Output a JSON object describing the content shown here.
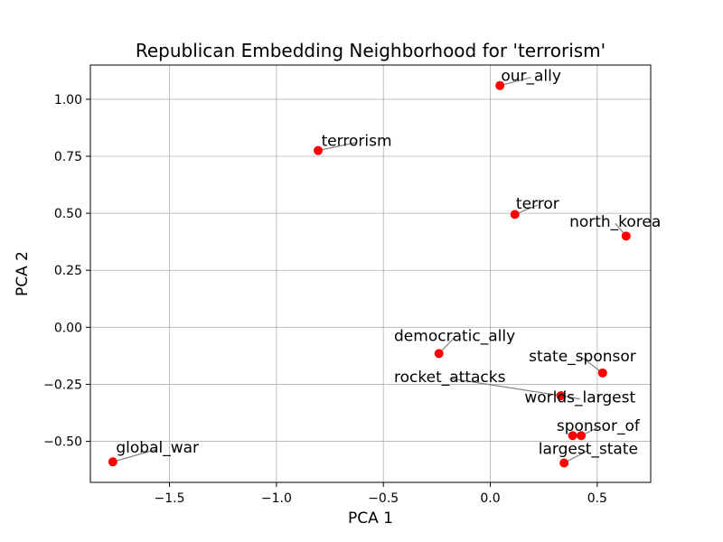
{
  "chart_data": {
    "type": "scatter",
    "title": "Republican Embedding Neighborhood for 'terrorism'",
    "xlabel": "PCA 1",
    "ylabel": "PCA 2",
    "xlim": [
      -1.87,
      0.75
    ],
    "ylim": [
      -0.68,
      1.15
    ],
    "xticks": [
      -1.5,
      -1.0,
      -0.5,
      0.0,
      0.5
    ],
    "xtick_labels": [
      "−1.5",
      "−1.0",
      "−0.5",
      "0.0",
      "0.5"
    ],
    "yticks": [
      -0.5,
      -0.25,
      0.0,
      0.25,
      0.5,
      0.75,
      1.0
    ],
    "ytick_labels": [
      "−0.50",
      "−0.25",
      "0.00",
      "0.25",
      "0.50",
      "0.75",
      "1.00"
    ],
    "grid": true,
    "marker_color": "#ff0000",
    "points": [
      {
        "label": "our_ally",
        "x": 0.045,
        "y": 1.06,
        "label_x": 0.05,
        "label_y": 1.08,
        "label_anchor": "start"
      },
      {
        "label": "terrorism",
        "x": -0.805,
        "y": 0.775,
        "label_x": -0.79,
        "label_y": 0.795,
        "label_anchor": "start"
      },
      {
        "label": "terror",
        "x": 0.115,
        "y": 0.495,
        "label_x": 0.12,
        "label_y": 0.52,
        "label_anchor": "start"
      },
      {
        "label": "north_korea",
        "x": 0.635,
        "y": 0.4,
        "label_x": 0.37,
        "label_y": 0.44,
        "label_anchor": "start"
      },
      {
        "label": "democratic_ally",
        "x": -0.24,
        "y": -0.115,
        "label_x": -0.45,
        "label_y": -0.06,
        "label_anchor": "start"
      },
      {
        "label": "state_sponsor",
        "x": 0.525,
        "y": -0.2,
        "label_x": 0.18,
        "label_y": -0.15,
        "label_anchor": "start"
      },
      {
        "label": "rocket_attacks",
        "x": 0.33,
        "y": -0.3,
        "label_x": -0.45,
        "label_y": -0.24,
        "label_anchor": "start"
      },
      {
        "label": "worlds_largest",
        "x": 0.33,
        "y": -0.3,
        "label_x": 0.16,
        "label_y": -0.33,
        "label_anchor": "start"
      },
      {
        "label": "sponsor_of",
        "x": 0.425,
        "y": -0.475,
        "label_x": 0.31,
        "label_y": -0.455,
        "label_anchor": "start"
      },
      {
        "label": "",
        "x": 0.385,
        "y": -0.475
      },
      {
        "label": "largest_state",
        "x": 0.345,
        "y": -0.595,
        "label_x": 0.225,
        "label_y": -0.555,
        "label_anchor": "start"
      },
      {
        "label": "global_war",
        "x": -1.765,
        "y": -0.59,
        "label_x": -1.75,
        "label_y": -0.55,
        "label_anchor": "start"
      }
    ]
  }
}
